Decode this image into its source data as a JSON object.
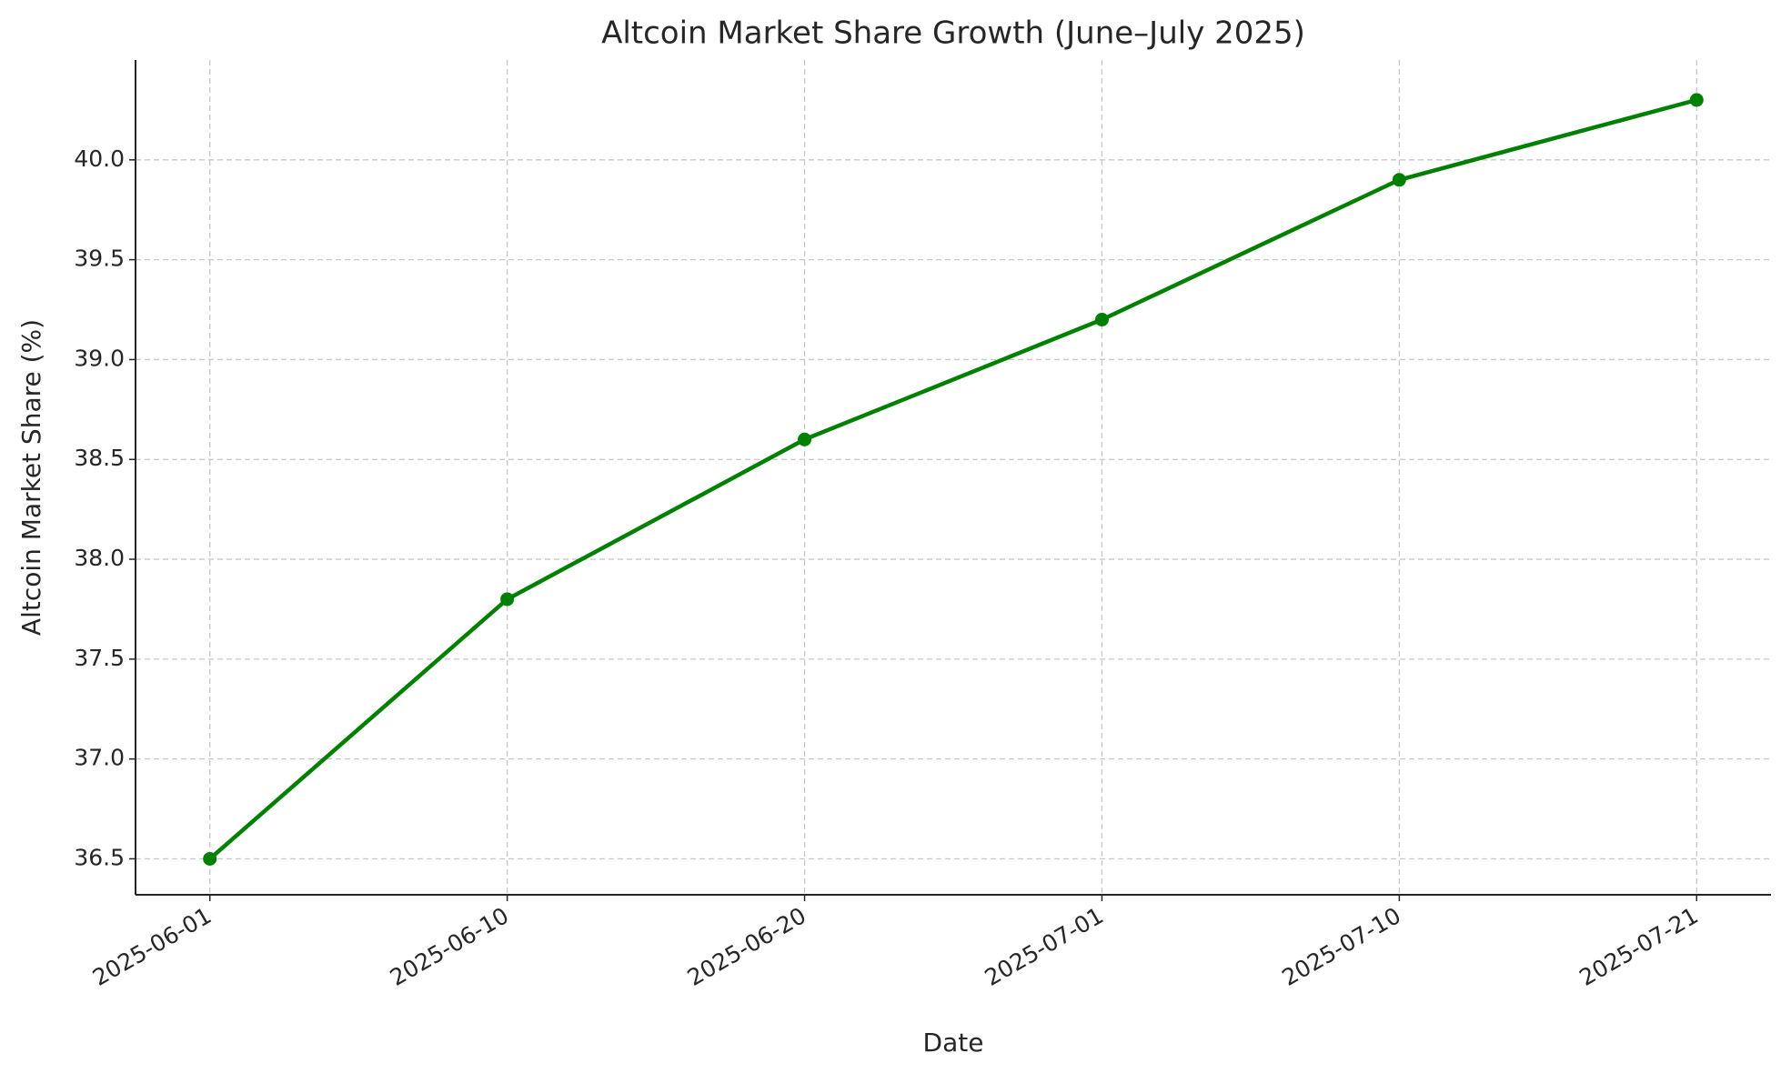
{
  "chart_data": {
    "type": "line",
    "title": "Altcoin Market Share Growth (June–July 2025)",
    "x_label": "Date",
    "y_label": "Altcoin Market Share (%)",
    "categories": [
      "2025-06-01",
      "2025-06-10",
      "2025-06-20",
      "2025-07-01",
      "2025-07-10",
      "2025-07-21"
    ],
    "series": [
      {
        "name": "Altcoin Market Share",
        "color": "#008000",
        "values": [
          36.5,
          37.8,
          38.6,
          39.2,
          39.9,
          40.3
        ]
      }
    ],
    "ylim": [
      36.32,
      40.5
    ],
    "yticks": [
      36.5,
      {
        "value": 37.0,
        "label": "37.0"
      },
      37.5,
      {
        "value": 38.0,
        "label": "38.0"
      },
      38.5,
      {
        "value": 39.0,
        "label": "39.0"
      },
      39.5,
      {
        "value": 40.0,
        "label": "40.0"
      }
    ],
    "grid": true
  }
}
